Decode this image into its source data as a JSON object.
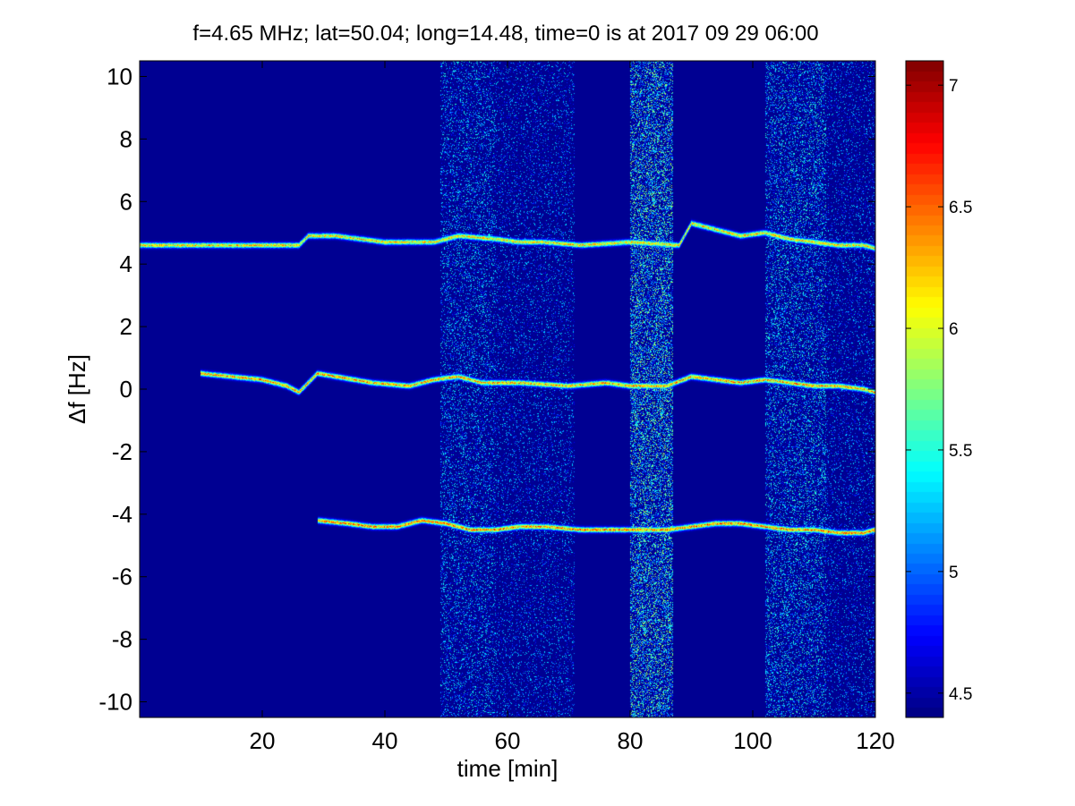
{
  "chart_data": {
    "type": "heatmap",
    "title": "f=4.65 MHz;  lat=50.04; long=14.48, time=0 is at 2017 09 29 06:00",
    "xlabel": "time [min]",
    "ylabel": "Δf [Hz]",
    "xlim": [
      0,
      120
    ],
    "ylim": [
      -10.5,
      10.5
    ],
    "x_ticks": [
      20,
      40,
      60,
      80,
      100,
      120
    ],
    "x_tick_labels": [
      "20",
      "40",
      "60",
      "80",
      "100",
      "120"
    ],
    "y_ticks": [
      10,
      8,
      6,
      4,
      2,
      0,
      -2,
      -4,
      -6,
      -8,
      -10
    ],
    "y_tick_labels": [
      "10",
      "8",
      "6",
      "4",
      "2",
      "0",
      "-2",
      "-4",
      "-6",
      "-8",
      "-10"
    ],
    "colorbar": {
      "range": [
        4.4,
        7.1
      ],
      "ticks": [
        7,
        6.5,
        6,
        5.5,
        5,
        4.5
      ],
      "tick_labels": [
        "7",
        "6.5",
        "6",
        "5.5",
        "5",
        "4.5"
      ],
      "colormap": "jet"
    },
    "background_value": 4.45,
    "noise_bands": [
      {
        "x_start": 49,
        "x_end": 58,
        "level": 0.45
      },
      {
        "x_start": 58,
        "x_end": 71,
        "level": 0.3
      },
      {
        "x_start": 80,
        "x_end": 87,
        "level": 0.85
      },
      {
        "x_start": 102,
        "x_end": 112,
        "level": 0.55
      },
      {
        "x_start": 112,
        "x_end": 120,
        "level": 0.3
      }
    ],
    "series": [
      {
        "x": [
          0,
          10,
          20,
          26,
          27.5,
          32,
          40,
          48,
          52,
          58,
          62,
          66,
          72,
          80,
          88,
          90,
          94,
          98,
          102,
          106,
          110,
          114,
          118,
          120
        ],
        "y": [
          4.6,
          4.6,
          4.6,
          4.6,
          4.9,
          4.9,
          4.7,
          4.7,
          4.9,
          4.8,
          4.7,
          4.7,
          4.6,
          4.7,
          4.6,
          5.3,
          5.1,
          4.9,
          5.0,
          4.8,
          4.7,
          4.6,
          4.6,
          4.5
        ],
        "peak": 0.8
      },
      {
        "x": [
          10,
          20,
          24,
          26,
          29,
          32,
          38,
          44,
          48,
          52,
          56,
          62,
          70,
          76,
          80,
          86,
          90,
          94,
          98,
          102,
          106,
          110,
          114,
          118,
          120
        ],
        "y": [
          0.5,
          0.3,
          0.1,
          -0.1,
          0.5,
          0.4,
          0.2,
          0.1,
          0.3,
          0.4,
          0.2,
          0.2,
          0.1,
          0.2,
          0.1,
          0.1,
          0.4,
          0.3,
          0.2,
          0.3,
          0.2,
          0.1,
          0.1,
          0.0,
          -0.1
        ],
        "peak": 0.85
      },
      {
        "x": [
          29,
          34,
          38,
          42,
          46,
          50,
          54,
          58,
          62,
          66,
          72,
          80,
          86,
          90,
          94,
          98,
          102,
          106,
          110,
          114,
          118,
          120
        ],
        "y": [
          -4.2,
          -4.3,
          -4.4,
          -4.4,
          -4.2,
          -4.3,
          -4.5,
          -4.5,
          -4.4,
          -4.4,
          -4.5,
          -4.5,
          -4.5,
          -4.4,
          -4.3,
          -4.3,
          -4.4,
          -4.5,
          -4.5,
          -4.6,
          -4.6,
          -4.5
        ],
        "peak": 0.9
      }
    ]
  }
}
